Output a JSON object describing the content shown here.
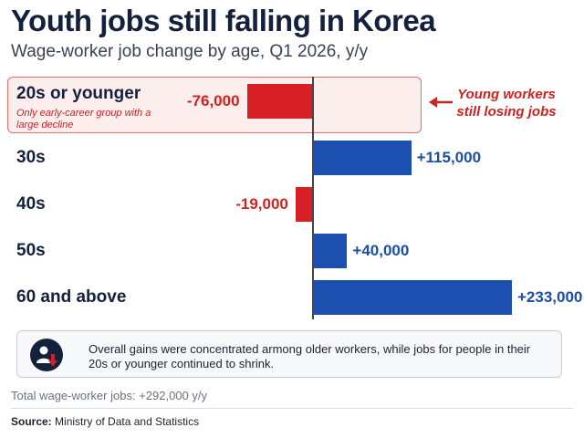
{
  "header": {
    "title": "Youth jobs still falling in Korea",
    "subtitle": "Wage-worker job change by age, Q1 2026, y/y"
  },
  "chart_data": {
    "type": "bar",
    "orientation": "horizontal",
    "title": "Youth jobs still falling in Korea",
    "subtitle": "Wage-worker job change by age, Q1 2026, y/y",
    "categories": [
      "20s or younger",
      "30s",
      "40s",
      "50s",
      "60 and above"
    ],
    "values": [
      -76000,
      115000,
      -19000,
      40000,
      233000
    ],
    "value_labels": [
      "-76,000",
      "+115,000",
      "-19,000",
      "+40,000",
      "+233,000"
    ],
    "colors": {
      "negative": "#d71f26",
      "positive": "#1d4fb0"
    },
    "highlight": {
      "category": "20s or younger",
      "note": "Only early-career group with a large decline"
    },
    "annotation": "Young workers still losing jobs",
    "xlabel": "",
    "ylabel": "",
    "xlim": [
      -95000,
      250000
    ],
    "grid": false
  },
  "note": {
    "icon": "person-down-arrow-icon",
    "text": "Overall gains were concentrated armong older workers, while jobs for people in their 20s or younger continued to shrink."
  },
  "footer": {
    "total": "Total wage-worker jobs: +292,000 y/y",
    "source_label": "Source:",
    "source_text": "Ministry of Data and Statistics"
  }
}
